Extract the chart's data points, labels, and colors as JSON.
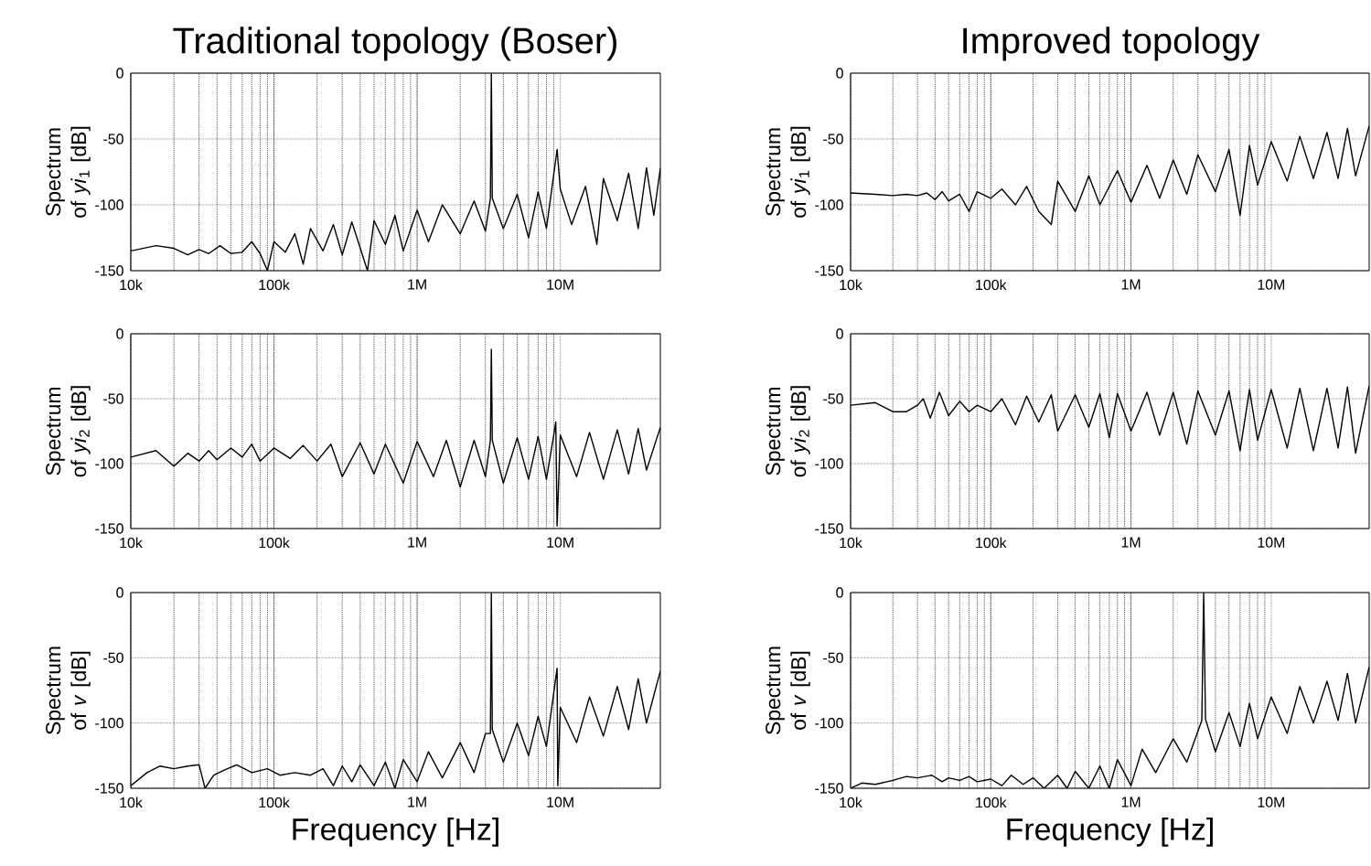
{
  "chart_data": [
    {
      "type": "line",
      "title": "Traditional topology (Boser)",
      "ylabel": "Spectrum of *yi*$_{1}$ [dB]",
      "log": "x",
      "grid": true,
      "line_style": "solid",
      "xlim": [
        10000,
        50000000
      ],
      "ylim": [
        -150,
        0
      ],
      "xticks": [
        {
          "value": 10000,
          "label": "10k"
        },
        {
          "value": 100000,
          "label": "100k"
        },
        {
          "value": 1000000,
          "label": "1M"
        },
        {
          "value": 10000000,
          "label": "10M"
        }
      ],
      "yticks": [
        -150,
        -100,
        -50,
        0
      ],
      "x": [
        10000,
        15000,
        20000,
        25000,
        30000,
        35000,
        42000,
        50000,
        60000,
        70000,
        80000,
        90000,
        100000,
        120000,
        140000,
        160000,
        180000,
        220000,
        260000,
        300000,
        350000,
        450000,
        500000,
        600000,
        700000,
        800000,
        1000000,
        1200000,
        1500000,
        2000000,
        2500000,
        3000000,
        3250000,
        3300000,
        3350000,
        4000000,
        5000000,
        6000000,
        7000000,
        8000000,
        9500000,
        10000000,
        12000000,
        15000000,
        18000000,
        20000000,
        25000000,
        30000000,
        35000000,
        40000000,
        45000000,
        50000000
      ],
      "series": [
        {
          "color": "#000000",
          "values": [
            -135,
            -131,
            -133,
            -138,
            -134,
            -137,
            -131,
            -137,
            -136,
            -128,
            -137,
            -150,
            -128,
            -136,
            -122,
            -145,
            -118,
            -135,
            -115,
            -138,
            -113,
            -150,
            -112,
            -130,
            -108,
            -135,
            -104,
            -128,
            -100,
            -122,
            -97,
            -120,
            -95,
            0,
            -95,
            -118,
            -92,
            -125,
            -90,
            -118,
            -58,
            -88,
            -115,
            -86,
            -130,
            -80,
            -112,
            -76,
            -118,
            -72,
            -108,
            -72
          ]
        }
      ]
    },
    {
      "type": "line",
      "title": "Improved topology",
      "ylabel": "Spectrum of *yi*$_{1}$ [dB]",
      "log": "x",
      "grid": true,
      "line_style": "solid",
      "xlim": [
        10000,
        50000000
      ],
      "ylim": [
        -150,
        0
      ],
      "xticks": [
        {
          "value": 10000,
          "label": "10k"
        },
        {
          "value": 100000,
          "label": "100k"
        },
        {
          "value": 1000000,
          "label": "1M"
        },
        {
          "value": 10000000,
          "label": "10M"
        }
      ],
      "yticks": [
        -150,
        -100,
        -50,
        0
      ],
      "x": [
        10000,
        15000,
        20000,
        25000,
        30000,
        35000,
        40000,
        45000,
        50000,
        60000,
        70000,
        80000,
        100000,
        120000,
        150000,
        180000,
        220000,
        270000,
        300000,
        400000,
        500000,
        600000,
        800000,
        1000000,
        1300000,
        1600000,
        2000000,
        2500000,
        3000000,
        4000000,
        5000000,
        6000000,
        7000000,
        8000000,
        10000000,
        13000000,
        16000000,
        20000000,
        25000000,
        30000000,
        35000000,
        40000000,
        50000000
      ],
      "series": [
        {
          "color": "#000000",
          "values": [
            -91,
            -92,
            -93,
            -92,
            -93,
            -91,
            -96,
            -90,
            -97,
            -92,
            -105,
            -90,
            -95,
            -88,
            -100,
            -86,
            -105,
            -115,
            -82,
            -105,
            -78,
            -100,
            -74,
            -98,
            -70,
            -95,
            -66,
            -92,
            -62,
            -90,
            -58,
            -108,
            -55,
            -85,
            -52,
            -82,
            -48,
            -80,
            -45,
            -80,
            -42,
            -78,
            -40
          ]
        }
      ]
    },
    {
      "type": "line",
      "ylabel": "Spectrum of *yi*$_{2}$ [dB]",
      "log": "x",
      "grid": true,
      "line_style": "solid",
      "xlim": [
        10000,
        50000000
      ],
      "ylim": [
        -150,
        0
      ],
      "xticks": [
        {
          "value": 10000,
          "label": "10k"
        },
        {
          "value": 100000,
          "label": "100k"
        },
        {
          "value": 1000000,
          "label": "1M"
        },
        {
          "value": 10000000,
          "label": "10M"
        }
      ],
      "yticks": [
        -150,
        -100,
        -50,
        0
      ],
      "x": [
        10000,
        15000,
        20000,
        25000,
        30000,
        35000,
        40000,
        50000,
        60000,
        70000,
        80000,
        100000,
        130000,
        160000,
        200000,
        250000,
        300000,
        400000,
        500000,
        600000,
        800000,
        1000000,
        1300000,
        1600000,
        2000000,
        2500000,
        3000000,
        3250000,
        3300000,
        3350000,
        4000000,
        5000000,
        6000000,
        7000000,
        8000000,
        9000000,
        9300000,
        9500000,
        10000000,
        13000000,
        16000000,
        20000000,
        25000000,
        30000000,
        35000000,
        40000000,
        50000000
      ],
      "series": [
        {
          "color": "#000000",
          "values": [
            -95,
            -90,
            -102,
            -92,
            -98,
            -90,
            -97,
            -88,
            -95,
            -85,
            -98,
            -88,
            -96,
            -86,
            -98,
            -85,
            -110,
            -84,
            -108,
            -85,
            -115,
            -83,
            -110,
            -82,
            -118,
            -82,
            -110,
            -82,
            -12,
            -82,
            -115,
            -80,
            -112,
            -79,
            -112,
            -78,
            -68,
            -148,
            -78,
            -110,
            -76,
            -112,
            -74,
            -108,
            -73,
            -105,
            -72
          ]
        }
      ]
    },
    {
      "type": "line",
      "ylabel": "Spectrum of *yi*$_{2}$ [dB]",
      "log": "x",
      "grid": true,
      "line_style": "solid",
      "xlim": [
        10000,
        50000000
      ],
      "ylim": [
        -150,
        0
      ],
      "xticks": [
        {
          "value": 10000,
          "label": "10k"
        },
        {
          "value": 100000,
          "label": "100k"
        },
        {
          "value": 1000000,
          "label": "1M"
        },
        {
          "value": 10000000,
          "label": "10M"
        }
      ],
      "yticks": [
        -150,
        -100,
        -50,
        0
      ],
      "x": [
        10000,
        15000,
        20000,
        25000,
        30000,
        33000,
        37000,
        43000,
        50000,
        60000,
        70000,
        80000,
        100000,
        120000,
        150000,
        180000,
        220000,
        270000,
        300000,
        400000,
        500000,
        600000,
        700000,
        800000,
        1000000,
        1300000,
        1600000,
        2000000,
        2500000,
        3000000,
        4000000,
        5000000,
        6000000,
        7000000,
        8000000,
        10000000,
        13000000,
        16000000,
        20000000,
        25000000,
        30000000,
        35000000,
        40000000,
        50000000
      ],
      "series": [
        {
          "color": "#000000",
          "values": [
            -55,
            -53,
            -60,
            -60,
            -55,
            -50,
            -65,
            -45,
            -63,
            -52,
            -60,
            -55,
            -60,
            -50,
            -70,
            -48,
            -68,
            -47,
            -75,
            -47,
            -72,
            -46,
            -80,
            -46,
            -75,
            -45,
            -78,
            -45,
            -85,
            -44,
            -78,
            -44,
            -90,
            -43,
            -82,
            -43,
            -88,
            -42,
            -90,
            -42,
            -88,
            -41,
            -92,
            -40
          ]
        }
      ]
    },
    {
      "type": "line",
      "ylabel": "Spectrum of *v* [dB]",
      "xlabel": "Frequency [Hz]",
      "log": "x",
      "grid": true,
      "line_style": "solid",
      "xlim": [
        10000,
        50000000
      ],
      "ylim": [
        -150,
        0
      ],
      "xticks": [
        {
          "value": 10000,
          "label": "10k"
        },
        {
          "value": 100000,
          "label": "100k"
        },
        {
          "value": 1000000,
          "label": "1M"
        },
        {
          "value": 10000000,
          "label": "10M"
        }
      ],
      "yticks": [
        -150,
        -100,
        -50,
        0
      ],
      "x": [
        10000,
        13000,
        16000,
        20000,
        25000,
        30000,
        33000,
        38000,
        45000,
        55000,
        70000,
        90000,
        110000,
        140000,
        180000,
        220000,
        260000,
        300000,
        350000,
        400000,
        500000,
        600000,
        700000,
        800000,
        1000000,
        1200000,
        1500000,
        2000000,
        2500000,
        3000000,
        3250000,
        3300000,
        3350000,
        4000000,
        5000000,
        6000000,
        7000000,
        8000000,
        9500000,
        9600000,
        10000000,
        13000000,
        16000000,
        20000000,
        25000000,
        30000000,
        35000000,
        40000000,
        50000000
      ],
      "series": [
        {
          "color": "#000000",
          "values": [
            -148,
            -138,
            -133,
            -135,
            -133,
            -132,
            -150,
            -140,
            -136,
            -132,
            -138,
            -135,
            -140,
            -138,
            -140,
            -135,
            -148,
            -133,
            -145,
            -132,
            -148,
            -130,
            -150,
            -128,
            -145,
            -122,
            -142,
            -115,
            -138,
            -108,
            -108,
            0,
            -105,
            -130,
            -100,
            -125,
            -95,
            -118,
            -58,
            -148,
            -88,
            -115,
            -80,
            -110,
            -72,
            -105,
            -66,
            -100,
            -60
          ]
        }
      ]
    },
    {
      "type": "line",
      "ylabel": "Spectrum of *v* [dB]",
      "xlabel": "Frequency [Hz]",
      "log": "x",
      "grid": true,
      "line_style": "solid",
      "xlim": [
        10000,
        50000000
      ],
      "ylim": [
        -150,
        0
      ],
      "xticks": [
        {
          "value": 10000,
          "label": "10k"
        },
        {
          "value": 100000,
          "label": "100k"
        },
        {
          "value": 1000000,
          "label": "1M"
        },
        {
          "value": 10000000,
          "label": "10M"
        }
      ],
      "yticks": [
        -150,
        -100,
        -50,
        0
      ],
      "x": [
        10000,
        12000,
        15000,
        20000,
        25000,
        30000,
        38000,
        45000,
        50000,
        60000,
        70000,
        80000,
        100000,
        120000,
        140000,
        170000,
        200000,
        240000,
        300000,
        350000,
        400000,
        500000,
        600000,
        700000,
        800000,
        1000000,
        1200000,
        1500000,
        2000000,
        2500000,
        3200000,
        3300000,
        3400000,
        4000000,
        5000000,
        6000000,
        7000000,
        8000000,
        10000000,
        13000000,
        16000000,
        20000000,
        25000000,
        30000000,
        35000000,
        40000000,
        50000000
      ],
      "series": [
        {
          "color": "#000000",
          "values": [
            -150,
            -146,
            -147,
            -144,
            -141,
            -142,
            -140,
            -145,
            -142,
            -144,
            -141,
            -145,
            -143,
            -148,
            -140,
            -147,
            -142,
            -150,
            -140,
            -150,
            -137,
            -150,
            -133,
            -150,
            -128,
            -148,
            -120,
            -138,
            -112,
            -130,
            -98,
            0,
            -97,
            -122,
            -92,
            -118,
            -85,
            -112,
            -80,
            -108,
            -72,
            -100,
            -68,
            -98,
            -62,
            -100,
            -57
          ]
        }
      ]
    }
  ]
}
